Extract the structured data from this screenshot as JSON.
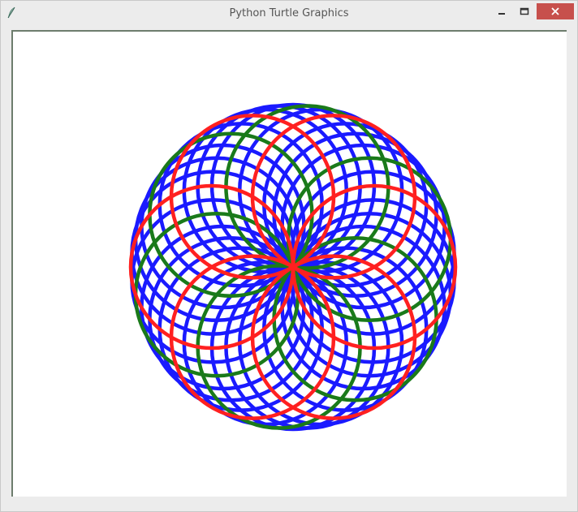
{
  "window": {
    "title": "Python Turtle Graphics",
    "controls": {
      "minimize": "minimize",
      "maximize": "maximize",
      "close": "close"
    }
  },
  "icons": {
    "app": "feather-icon",
    "minimize": "minimize-icon",
    "maximize": "maximize-icon",
    "close": "close-icon"
  },
  "drawing": {
    "shape": "spirograph",
    "circle_count": 36,
    "pen_colors": [
      "#ff2020",
      "#1a1aff",
      "#1a7a1a"
    ],
    "color_pattern": [
      "red",
      "blue",
      "blue",
      "blue",
      "green",
      "blue"
    ],
    "background": "#ffffff"
  }
}
